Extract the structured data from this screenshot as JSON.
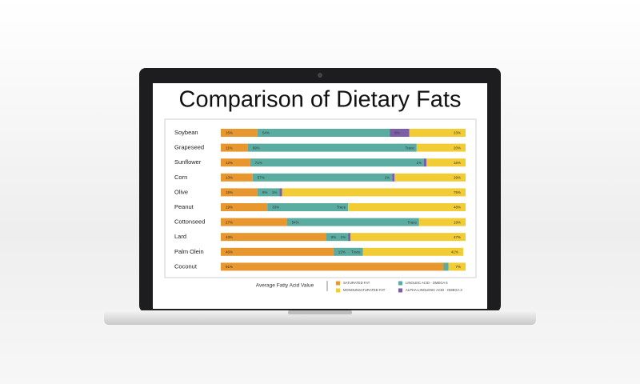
{
  "chart_data": {
    "type": "stacked-bar-horizontal",
    "title": "Comparison of Dietary Fats",
    "legend_title": "Average Fatty Acid Value",
    "categories": [
      "Soybean",
      "Grapeseed",
      "Sunflower",
      "Corn",
      "Olive",
      "Peanut",
      "Cottonseed",
      "Lard",
      "Palm Olein",
      "Coconut"
    ],
    "xlim": [
      0,
      100
    ],
    "series": [
      {
        "name": "SATURATED FAT",
        "color": "#e8962e",
        "values": [
          15,
          11,
          12,
          13,
          15,
          19,
          27,
          43,
          46,
          91
        ],
        "value_labels": [
          "15%",
          "11%",
          "12%",
          "13%",
          "15%",
          "19%",
          "27%",
          "43%",
          "46%",
          "91%"
        ]
      },
      {
        "name": "LINOLEIC ACID - OMEGA 6",
        "color": "#5aaba0",
        "values": [
          54,
          69,
          71,
          57,
          9,
          33,
          54,
          9,
          12,
          2
        ],
        "value_labels": [
          "54%",
          "69%",
          "71%",
          "57%",
          "9%",
          "33%",
          "54%",
          "9%",
          "12%",
          "2%"
        ]
      },
      {
        "name": "ALPHA-LINOLENIC ACID - OMEGA 3",
        "color": "#7b5ea7",
        "values": [
          8,
          0,
          1,
          1,
          1,
          0,
          0,
          1,
          0,
          null
        ],
        "value_labels": [
          "8%",
          "Trace",
          "1%",
          "1%",
          "1%",
          "Trace",
          "Trace",
          "1%",
          "Trace",
          null
        ]
      },
      {
        "name": "MONOUNSATURATED FAT",
        "color": "#f2cc35",
        "values": [
          23,
          20,
          16,
          29,
          75,
          48,
          19,
          47,
          41,
          7
        ],
        "value_labels": [
          "23%",
          "20%",
          "16%",
          "29%",
          "75%",
          "48%",
          "19%",
          "47%",
          "41%",
          "7%"
        ]
      }
    ],
    "legend_order": [
      0,
      3,
      1,
      2
    ]
  }
}
